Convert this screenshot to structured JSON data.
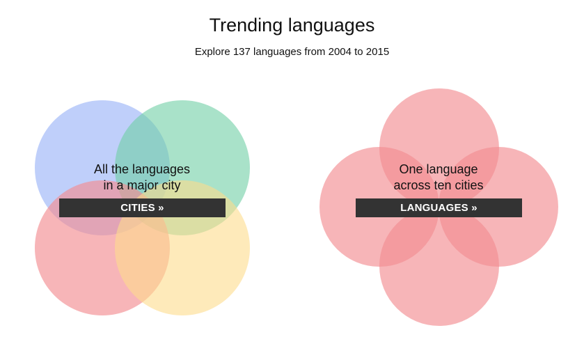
{
  "header": {
    "title": "Trending languages",
    "subtitle": "Explore 137 languages from 2004 to 2015"
  },
  "cities_card": {
    "line1": "All the languages",
    "line2": "in a major city",
    "button_label": "CITIES »",
    "circle_colors": {
      "blue": "#9db6f7",
      "green": "#6fcfa5",
      "red": "#f38d92",
      "yellow": "#fddc8c"
    }
  },
  "languages_card": {
    "line1": "One language",
    "line2": "across ten cities",
    "button_label": "LANGUAGES »",
    "circle_colors": {
      "red": "#f38d92"
    }
  }
}
